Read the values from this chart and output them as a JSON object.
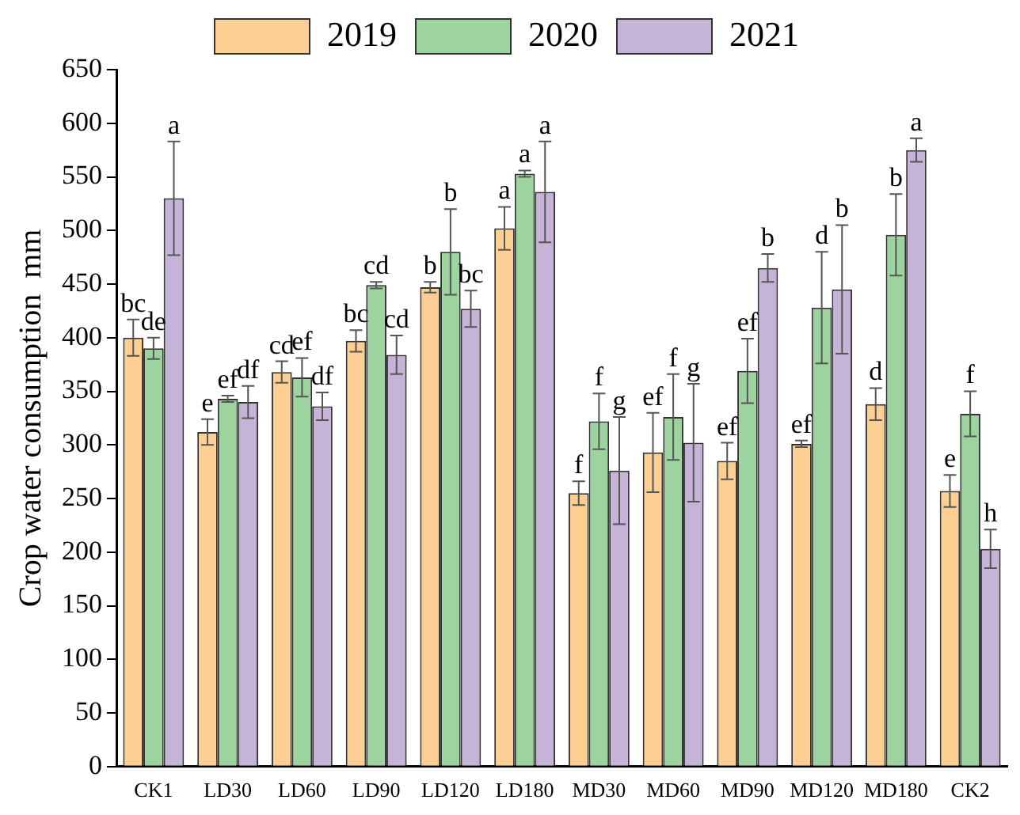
{
  "chart_data": {
    "type": "bar",
    "ylabel": "Crop water consumption  mm",
    "categories": [
      "CK1",
      "LD30",
      "LD60",
      "LD90",
      "LD120",
      "LD180",
      "MD30",
      "MD60",
      "MD90",
      "MD120",
      "MD180",
      "CK2"
    ],
    "series": [
      {
        "name": "2019",
        "color": "#fdcf93",
        "values": [
          400,
          312,
          368,
          397,
          447,
          502,
          255,
          293,
          285,
          301,
          338,
          257
        ],
        "errors": [
          17,
          12,
          10,
          10,
          5,
          20,
          11,
          37,
          17,
          3,
          15,
          15
        ],
        "value_labels": [
          "bc",
          "e",
          "cd",
          "bc",
          "b",
          "a",
          "f",
          "ef",
          "ef",
          "ef",
          "d",
          "e"
        ]
      },
      {
        "name": "2020",
        "color": "#9dd39e",
        "values": [
          390,
          343,
          363,
          449,
          480,
          553,
          322,
          326,
          369,
          428,
          496,
          329
        ],
        "errors": [
          10,
          3,
          18,
          3,
          40,
          3,
          26,
          40,
          30,
          52,
          38,
          21
        ],
        "value_labels": [
          "de",
          "ef",
          "ef",
          "cd",
          "b",
          "a",
          "f",
          "f",
          "ef",
          "d",
          "b",
          "f"
        ]
      },
      {
        "name": "2021",
        "color": "#c5b3d8",
        "values": [
          530,
          340,
          336,
          384,
          427,
          536,
          276,
          302,
          465,
          445,
          575,
          203
        ],
        "errors": [
          53,
          15,
          13,
          18,
          17,
          47,
          50,
          55,
          13,
          60,
          11,
          18
        ],
        "value_labels": [
          "a",
          "df",
          "df",
          "cd",
          "bc",
          "a",
          "g",
          "g",
          "b",
          "b",
          "a",
          "h"
        ]
      }
    ],
    "ylim": [
      0,
      650
    ],
    "yticks": [
      0,
      50,
      100,
      150,
      200,
      250,
      300,
      350,
      400,
      450,
      500,
      550,
      600,
      650
    ],
    "grid": false,
    "legend": "top"
  }
}
